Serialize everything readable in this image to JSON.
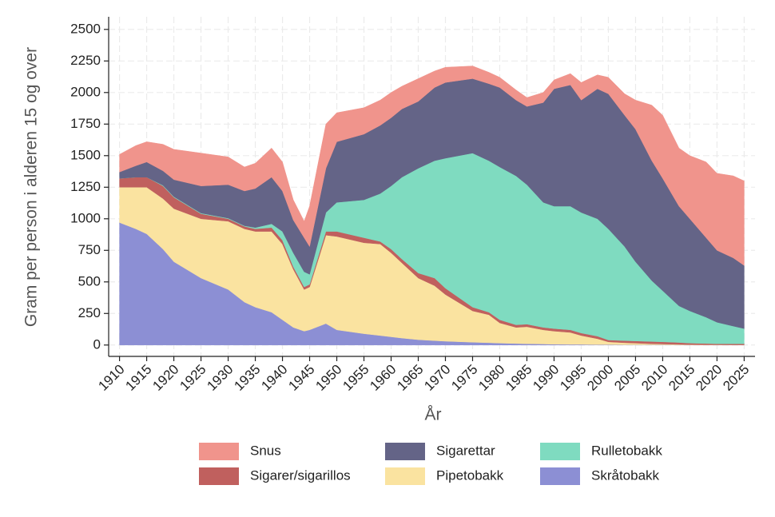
{
  "chart_data": {
    "type": "stacked-area",
    "y_label": "Gram per person i alderen 15 og over",
    "x_label": "År",
    "x": [
      1910,
      1913,
      1915,
      1918,
      1920,
      1925,
      1930,
      1933,
      1935,
      1938,
      1940,
      1942,
      1944,
      1945,
      1948,
      1950,
      1955,
      1958,
      1960,
      1962,
      1965,
      1968,
      1970,
      1975,
      1978,
      1980,
      1983,
      1985,
      1988,
      1990,
      1993,
      1995,
      1998,
      2000,
      2003,
      2005,
      2008,
      2010,
      2013,
      2015,
      2018,
      2020,
      2023,
      2025
    ],
    "series": [
      {
        "name": "Skråtobakk",
        "color": "#8c8fd4",
        "values": [
          970,
          920,
          880,
          760,
          660,
          530,
          440,
          340,
          300,
          260,
          200,
          140,
          110,
          120,
          170,
          120,
          90,
          75,
          65,
          55,
          42,
          35,
          30,
          22,
          18,
          15,
          12,
          10,
          8,
          6,
          5,
          5,
          3,
          3,
          2,
          2,
          2,
          2,
          1,
          1,
          1,
          1,
          1,
          1
        ]
      },
      {
        "name": "Pipetobakk",
        "color": "#fae3a0",
        "values": [
          280,
          330,
          370,
          400,
          420,
          470,
          540,
          580,
          600,
          640,
          600,
          460,
          330,
          340,
          700,
          740,
          720,
          725,
          665,
          595,
          488,
          435,
          370,
          248,
          222,
          160,
          128,
          135,
          112,
          104,
          95,
          70,
          47,
          22,
          16,
          13,
          8,
          6,
          4,
          2,
          1,
          1,
          0,
          0
        ]
      },
      {
        "name": "Sigarer/sigarillos",
        "color": "#c0605e",
        "values": [
          70,
          80,
          80,
          100,
          90,
          40,
          20,
          20,
          20,
          30,
          30,
          20,
          20,
          20,
          30,
          40,
          40,
          20,
          30,
          30,
          40,
          60,
          50,
          30,
          20,
          25,
          20,
          20,
          20,
          20,
          20,
          20,
          20,
          15,
          17,
          17,
          18,
          17,
          15,
          12,
          10,
          8,
          9,
          9
        ]
      },
      {
        "name": "Rulletobakk",
        "color": "#7fdbc0",
        "values": [
          0,
          0,
          0,
          5,
          5,
          5,
          5,
          5,
          10,
          30,
          70,
          110,
          120,
          80,
          150,
          230,
          300,
          380,
          500,
          650,
          830,
          930,
          1030,
          1220,
          1200,
          1210,
          1180,
          1105,
          990,
          970,
          980,
          955,
          930,
          880,
          745,
          628,
          482,
          405,
          290,
          255,
          208,
          170,
          140,
          120
        ]
      },
      {
        "name": "Sigarettar",
        "color": "#646487",
        "values": [
          50,
          90,
          120,
          115,
          135,
          215,
          265,
          275,
          310,
          370,
          320,
          260,
          270,
          220,
          350,
          480,
          520,
          540,
          540,
          540,
          530,
          580,
          600,
          590,
          610,
          630,
          600,
          620,
          790,
          930,
          960,
          890,
          1030,
          1070,
          1040,
          1050,
          950,
          890,
          790,
          730,
          630,
          570,
          540,
          500
        ]
      },
      {
        "name": "Snus",
        "color": "#f0948c",
        "values": [
          140,
          160,
          160,
          210,
          240,
          260,
          220,
          190,
          200,
          230,
          230,
          160,
          130,
          320,
          350,
          230,
          210,
          200,
          200,
          180,
          180,
          130,
          120,
          100,
          90,
          80,
          80,
          70,
          80,
          70,
          90,
          140,
          110,
          130,
          170,
          230,
          440,
          500,
          460,
          500,
          600,
          610,
          650,
          670
        ]
      }
    ],
    "xlim": [
      1908,
      2027
    ],
    "xticks": [
      1910,
      1915,
      1920,
      1925,
      1930,
      1935,
      1940,
      1945,
      1950,
      1955,
      1960,
      1965,
      1970,
      1975,
      1980,
      1985,
      1990,
      1995,
      2000,
      2005,
      2010,
      2015,
      2020,
      2025
    ],
    "ylim": [
      -90,
      2600
    ],
    "yticks": [
      0,
      250,
      500,
      750,
      1000,
      1250,
      1500,
      1750,
      2000,
      2250,
      2500
    ],
    "grid": true
  }
}
